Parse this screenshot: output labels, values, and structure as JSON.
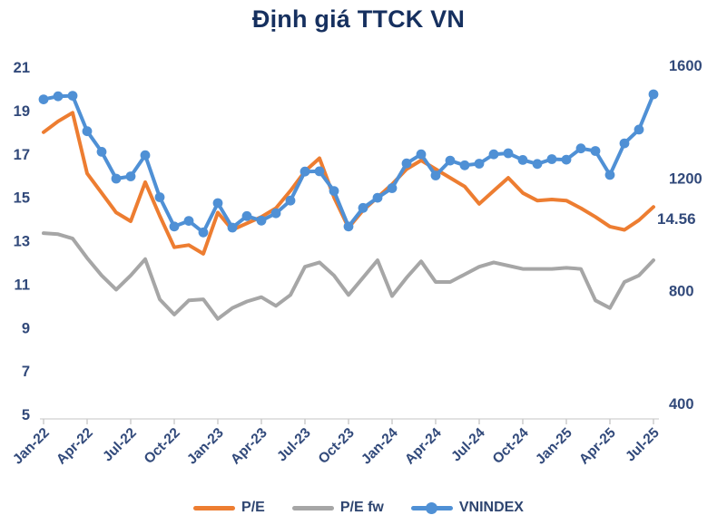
{
  "title": "Định giá TTCK VN",
  "colors": {
    "title_text": "#16305F",
    "tick_text": "#31497A",
    "legend_text": "#2E4570",
    "axis_line": "#D9D9D9",
    "tick_mark": "#C9C9C9",
    "pe_orange": "#ED7D31",
    "pe_fw_gray": "#A6A6A6",
    "vnindex_blue": "#4F90D5"
  },
  "annotation": {
    "text": "14.56",
    "series": "P/E",
    "position": "last-point"
  },
  "chart_data": {
    "type": "line",
    "title": "Định giá TTCK VN",
    "grid": false,
    "legend_position": "bottom",
    "x": [
      "Jan-22",
      "Feb-22",
      "Mar-22",
      "Apr-22",
      "May-22",
      "Jun-22",
      "Jul-22",
      "Aug-22",
      "Sep-22",
      "Oct-22",
      "Nov-22",
      "Dec-22",
      "Jan-23",
      "Feb-23",
      "Mar-23",
      "Apr-23",
      "May-23",
      "Jun-23",
      "Jul-23",
      "Aug-23",
      "Sep-23",
      "Oct-23",
      "Nov-23",
      "Dec-23",
      "Jan-24",
      "Feb-24",
      "Mar-24",
      "Apr-24",
      "May-24",
      "Jun-24",
      "Jul-24",
      "Aug-24",
      "Sep-24",
      "Oct-24",
      "Nov-24",
      "Dec-24",
      "Jan-25",
      "Feb-25",
      "Mar-25",
      "Apr-25",
      "May-25",
      "Jun-25",
      "Jul-25"
    ],
    "x_tick_labels": [
      "Jan-22",
      "Apr-22",
      "Jul-22",
      "Oct-22",
      "Jan-23",
      "Apr-23",
      "Jul-23",
      "Oct-23",
      "Jan-24",
      "Apr-24",
      "Jul-24",
      "Oct-24",
      "Jan-25",
      "Apr-25",
      "Jul-25"
    ],
    "y_left": {
      "min": 5,
      "max": 21,
      "ticks": [
        21,
        19,
        17,
        15,
        13,
        11,
        9,
        7,
        5
      ]
    },
    "y_right": {
      "min": 400,
      "max": 1600,
      "ticks": [
        1600,
        1200,
        800,
        400
      ]
    },
    "series": [
      {
        "name": "P/E",
        "axis": "left",
        "color": "#ED7D31",
        "marker": false,
        "values": [
          18.0,
          18.5,
          18.9,
          16.1,
          15.2,
          14.3,
          13.9,
          15.7,
          14.15,
          12.7,
          12.8,
          12.4,
          14.3,
          13.5,
          13.8,
          14.1,
          14.5,
          15.3,
          16.2,
          16.8,
          15.0,
          13.6,
          14.4,
          15.0,
          15.6,
          16.3,
          16.7,
          16.3,
          15.9,
          15.5,
          14.7,
          15.3,
          15.9,
          15.2,
          14.85,
          14.9,
          14.85,
          14.5,
          14.1,
          13.65,
          13.5,
          13.95,
          14.56
        ]
      },
      {
        "name": "P/E fw",
        "axis": "left",
        "color": "#A6A6A6",
        "marker": false,
        "values": [
          13.35,
          13.3,
          13.1,
          12.2,
          11.4,
          10.75,
          11.4,
          12.15,
          10.3,
          9.6,
          10.25,
          10.3,
          9.4,
          9.9,
          10.2,
          10.4,
          10.0,
          10.5,
          11.8,
          12.0,
          11.4,
          10.5,
          11.3,
          12.1,
          10.45,
          11.3,
          12.05,
          11.1,
          11.1,
          11.45,
          11.8,
          12.0,
          11.85,
          11.7,
          11.7,
          11.7,
          11.75,
          11.7,
          10.25,
          9.9,
          11.1,
          11.4,
          12.1
        ]
      },
      {
        "name": "VNINDEX",
        "axis": "right",
        "color": "#4F90D5",
        "marker": true,
        "values": [
          1479,
          1490,
          1492,
          1366,
          1293,
          1198,
          1206,
          1281,
          1132,
          1028,
          1048,
          1007,
          1111,
          1024,
          1065,
          1049,
          1075,
          1120,
          1223,
          1224,
          1154,
          1028,
          1094,
          1130,
          1164,
          1252,
          1284,
          1209,
          1262,
          1245,
          1251,
          1284,
          1288,
          1264,
          1250,
          1267,
          1265,
          1305,
          1296,
          1211,
          1323,
          1372,
          1497
        ]
      }
    ],
    "annotations": [
      {
        "text": "14.56",
        "series_index": 0,
        "point": "last"
      }
    ]
  }
}
